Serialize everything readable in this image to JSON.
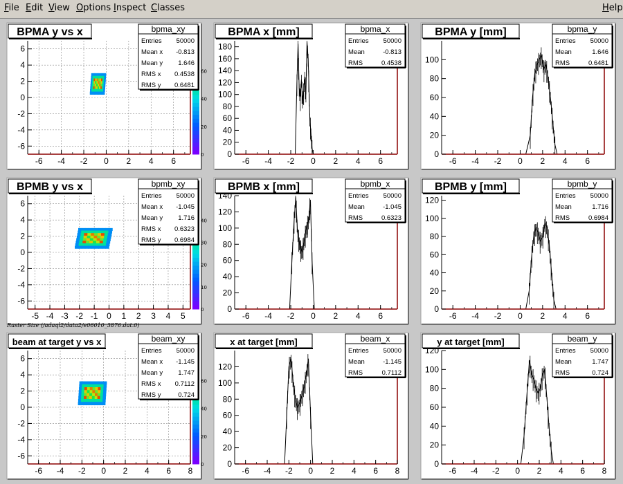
{
  "menubar": {
    "items": [
      {
        "label": "File",
        "u": "F",
        "rest": "ile"
      },
      {
        "label": "Edit",
        "u": "E",
        "rest": "dit"
      },
      {
        "label": "View",
        "u": "V",
        "rest": "iew"
      },
      {
        "label": "Options",
        "u": "O",
        "rest": "ptions"
      },
      {
        "label": "Inspect",
        "u": "I",
        "rest": "nspect"
      },
      {
        "label": "Classes",
        "u": "C",
        "rest": "lasses"
      }
    ],
    "help": {
      "label": "Help",
      "u": "H",
      "rest": "elp"
    }
  },
  "caption": "Raster Size (/adaql2/data2/e06010_3876.dat.0)",
  "colors": {
    "frame_axis": "#8b0000",
    "hist": "#000000",
    "pad_bg": "#ffffff",
    "canvas_bg": "#c8c8c8"
  },
  "chart_data": [
    {
      "type": "heatmap",
      "title": "BPMA y vs x",
      "stats": {
        "name": "bpma_xy",
        "rows": [
          [
            "Entries",
            "50000"
          ],
          [
            "Mean x",
            "-0.813"
          ],
          [
            "Mean y",
            "1.646"
          ],
          [
            "RMS x",
            "0.4538"
          ],
          [
            "RMS y",
            "0.6481"
          ]
        ]
      },
      "xlim": [
        -7,
        7.5
      ],
      "xticks": [
        -6,
        -4,
        -2,
        0,
        2,
        4,
        6
      ],
      "ylim": [
        -7,
        7
      ],
      "yticks": [
        -6,
        -4,
        -2,
        0,
        2,
        4,
        6
      ],
      "region": {
        "xmin": -1.4,
        "xmax": -0.1,
        "ymin": 0.4,
        "ymax": 3.0
      },
      "zticks": [
        0,
        20,
        40,
        60
      ],
      "zmax": 80
    },
    {
      "type": "line",
      "title": "BPMA x [mm]",
      "stats": {
        "name": "bpma_x",
        "rows": [
          [
            "Entries",
            "50000"
          ],
          [
            "Mean",
            "-0.813"
          ],
          [
            "RMS",
            "0.4538"
          ]
        ]
      },
      "xlim": [
        -7,
        7.5
      ],
      "xticks": [
        -6,
        -4,
        -2,
        0,
        2,
        4,
        6
      ],
      "ylim": [
        0,
        190
      ],
      "yticks": [
        0,
        20,
        40,
        60,
        80,
        100,
        120,
        140,
        160,
        180
      ],
      "x": [
        -7,
        -1.6,
        -1.45,
        -1.35,
        -1.25,
        -1.15,
        -1.05,
        -0.95,
        -0.85,
        -0.75,
        -0.65,
        -0.55,
        -0.45,
        -0.3,
        -0.1,
        0.0,
        7.5
      ],
      "y": [
        0,
        0,
        120,
        185,
        110,
        95,
        125,
        90,
        105,
        130,
        100,
        188,
        160,
        60,
        10,
        0,
        0
      ]
    },
    {
      "type": "line",
      "title": "BPMA y [mm]",
      "stats": {
        "name": "bpma_y",
        "rows": [
          [
            "Entries",
            "50000"
          ],
          [
            "Mean",
            "1.646"
          ],
          [
            "RMS",
            "0.6481"
          ]
        ]
      },
      "xlim": [
        -7,
        7.5
      ],
      "xticks": [
        -6,
        -4,
        -2,
        0,
        2,
        4,
        6
      ],
      "ylim": [
        0,
        120
      ],
      "yticks": [
        0,
        20,
        40,
        60,
        80,
        100
      ],
      "x": [
        -7,
        0.5,
        0.9,
        1.1,
        1.3,
        1.5,
        1.7,
        1.9,
        2.1,
        2.3,
        2.5,
        2.7,
        2.9,
        3.1,
        3.3,
        7.5
      ],
      "y": [
        0,
        0,
        20,
        60,
        85,
        95,
        100,
        105,
        90,
        95,
        80,
        60,
        35,
        10,
        0,
        0
      ]
    },
    {
      "type": "heatmap",
      "title": "BPMB y vs x",
      "stats": {
        "name": "bpmb_xy",
        "rows": [
          [
            "Entries",
            "50000"
          ],
          [
            "Mean x",
            "-1.045"
          ],
          [
            "Mean y",
            "1.716"
          ],
          [
            "RMS x",
            "0.6323"
          ],
          [
            "RMS y",
            "0.6984"
          ]
        ]
      },
      "xlim": [
        -5.5,
        5.5
      ],
      "xticks": [
        -5,
        -4,
        -3,
        -2,
        -1,
        0,
        1,
        2,
        3,
        4,
        5
      ],
      "ylim": [
        -7,
        7
      ],
      "yticks": [
        -6,
        -4,
        -2,
        0,
        2,
        4,
        6
      ],
      "region": {
        "xmin": -2.2,
        "xmax": 0.1,
        "ymin": 0.5,
        "ymax": 3.0
      },
      "zticks": [
        0,
        10,
        20,
        30,
        40
      ],
      "zmax": 50
    },
    {
      "type": "line",
      "title": "BPMB x [mm]",
      "stats": {
        "name": "bpmb_x",
        "rows": [
          [
            "Entries",
            "50000"
          ],
          [
            "Mean",
            "-1.045"
          ],
          [
            "RMS",
            "0.6323"
          ]
        ]
      },
      "xlim": [
        -7,
        7.5
      ],
      "xticks": [
        -6,
        -4,
        -2,
        0,
        2,
        4,
        6
      ],
      "ylim": [
        0,
        140
      ],
      "yticks": [
        0,
        20,
        40,
        60,
        80,
        100,
        120,
        140
      ],
      "x": [
        -7,
        -2.1,
        -1.9,
        -1.7,
        -1.55,
        -1.4,
        -1.2,
        -1.0,
        -0.8,
        -0.6,
        -0.4,
        -0.25,
        -0.1,
        0.1,
        7.5
      ],
      "y": [
        0,
        0,
        60,
        110,
        138,
        95,
        80,
        70,
        85,
        100,
        110,
        135,
        60,
        0,
        0
      ]
    },
    {
      "type": "line",
      "title": "BPMB y [mm]",
      "stats": {
        "name": "bpmb_y",
        "rows": [
          [
            "Entries",
            "50000"
          ],
          [
            "Mean",
            "1.716"
          ],
          [
            "RMS",
            "0.6984"
          ]
        ]
      },
      "xlim": [
        -7,
        7.5
      ],
      "xticks": [
        -6,
        -4,
        -2,
        0,
        2,
        4,
        6
      ],
      "ylim": [
        0,
        125
      ],
      "yticks": [
        0,
        20,
        40,
        60,
        80,
        100,
        120
      ],
      "x": [
        -7,
        0.5,
        0.8,
        1.0,
        1.2,
        1.4,
        1.6,
        1.8,
        2.0,
        2.2,
        2.4,
        2.6,
        2.8,
        3.0,
        3.2,
        7.5
      ],
      "y": [
        0,
        0,
        20,
        55,
        80,
        90,
        85,
        75,
        80,
        95,
        90,
        70,
        40,
        10,
        0,
        0
      ]
    },
    {
      "type": "heatmap",
      "title": "beam at target y vs x",
      "stats": {
        "name": "beam_xy",
        "rows": [
          [
            "Entries",
            "50000"
          ],
          [
            "Mean x",
            "-1.145"
          ],
          [
            "Mean y",
            "1.747"
          ],
          [
            "RMS x",
            "0.7112"
          ],
          [
            "RMS y",
            "0.724"
          ]
        ]
      },
      "xlim": [
        -7,
        8
      ],
      "xticks": [
        -6,
        -4,
        -2,
        0,
        2,
        4,
        6,
        8
      ],
      "ylim": [
        -7,
        7
      ],
      "yticks": [
        -6,
        -4,
        -2,
        0,
        2,
        4,
        6
      ],
      "region": {
        "xmin": -2.3,
        "xmax": 0.2,
        "ymin": 0.3,
        "ymax": 3.2
      },
      "zticks": [
        0,
        20,
        40,
        60
      ],
      "zmax": 80
    },
    {
      "type": "line",
      "title": "x at target [mm]",
      "stats": {
        "name": "beam_x",
        "rows": [
          [
            "Entries",
            "50000"
          ],
          [
            "Mean",
            "-1.145"
          ],
          [
            "RMS",
            "0.7112"
          ]
        ]
      },
      "xlim": [
        -7,
        8
      ],
      "xticks": [
        -6,
        -4,
        -2,
        0,
        2,
        4,
        6,
        8
      ],
      "ylim": [
        0,
        140
      ],
      "yticks": [
        0,
        20,
        40,
        60,
        80,
        100,
        120
      ],
      "x": [
        -7,
        -2.4,
        -2.2,
        -2.0,
        -1.8,
        -1.6,
        -1.4,
        -1.2,
        -1.0,
        -0.8,
        -0.6,
        -0.4,
        -0.2,
        0.0,
        0.2,
        8
      ],
      "y": [
        0,
        0,
        60,
        120,
        130,
        100,
        80,
        70,
        75,
        85,
        95,
        110,
        130,
        60,
        0,
        0
      ]
    },
    {
      "type": "line",
      "title": "y at target [mm]",
      "stats": {
        "name": "beam_y",
        "rows": [
          [
            "Entries",
            "50000"
          ],
          [
            "Mean",
            "1.747"
          ],
          [
            "RMS",
            "0.724"
          ]
        ]
      },
      "xlim": [
        -7,
        8
      ],
      "xticks": [
        -6,
        -4,
        -2,
        0,
        2,
        4,
        6,
        8
      ],
      "ylim": [
        0,
        120
      ],
      "yticks": [
        0,
        20,
        40,
        60,
        80,
        100,
        120
      ],
      "x": [
        -7,
        0.3,
        0.6,
        0.9,
        1.1,
        1.3,
        1.5,
        1.7,
        1.9,
        2.1,
        2.3,
        2.5,
        2.7,
        2.9,
        3.1,
        3.3,
        8
      ],
      "y": [
        0,
        0,
        30,
        80,
        110,
        95,
        90,
        80,
        75,
        80,
        95,
        100,
        70,
        40,
        15,
        0,
        0
      ]
    }
  ]
}
